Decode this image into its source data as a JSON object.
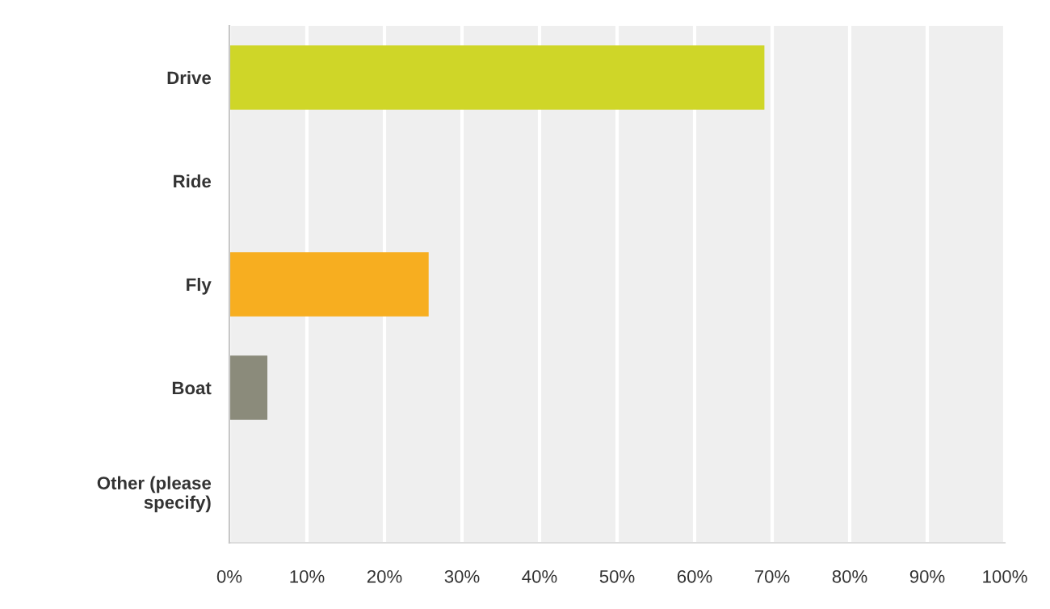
{
  "chart_data": {
    "type": "bar",
    "orientation": "horizontal",
    "categories": [
      "Drive",
      "Ride",
      "Fly",
      "Boat",
      "Other (please\nspecify)"
    ],
    "values": [
      69,
      0,
      25.7,
      4.9,
      0
    ],
    "colors": [
      "#cfd628",
      "#3b8ec2",
      "#f7ae20",
      "#8b8b7b",
      "#b85b8f"
    ],
    "xlim": [
      0,
      100
    ],
    "xticks": [
      {
        "value": 0,
        "label": "0%"
      },
      {
        "value": 10,
        "label": "10%"
      },
      {
        "value": 20,
        "label": "20%"
      },
      {
        "value": 30,
        "label": "30%"
      },
      {
        "value": 40,
        "label": "40%"
      },
      {
        "value": 50,
        "label": "50%"
      },
      {
        "value": 60,
        "label": "60%"
      },
      {
        "value": 70,
        "label": "70%"
      },
      {
        "value": 80,
        "label": "80%"
      },
      {
        "value": 90,
        "label": "90%"
      },
      {
        "value": 100,
        "label": "100%"
      }
    ],
    "grid": "x",
    "legend": false
  }
}
